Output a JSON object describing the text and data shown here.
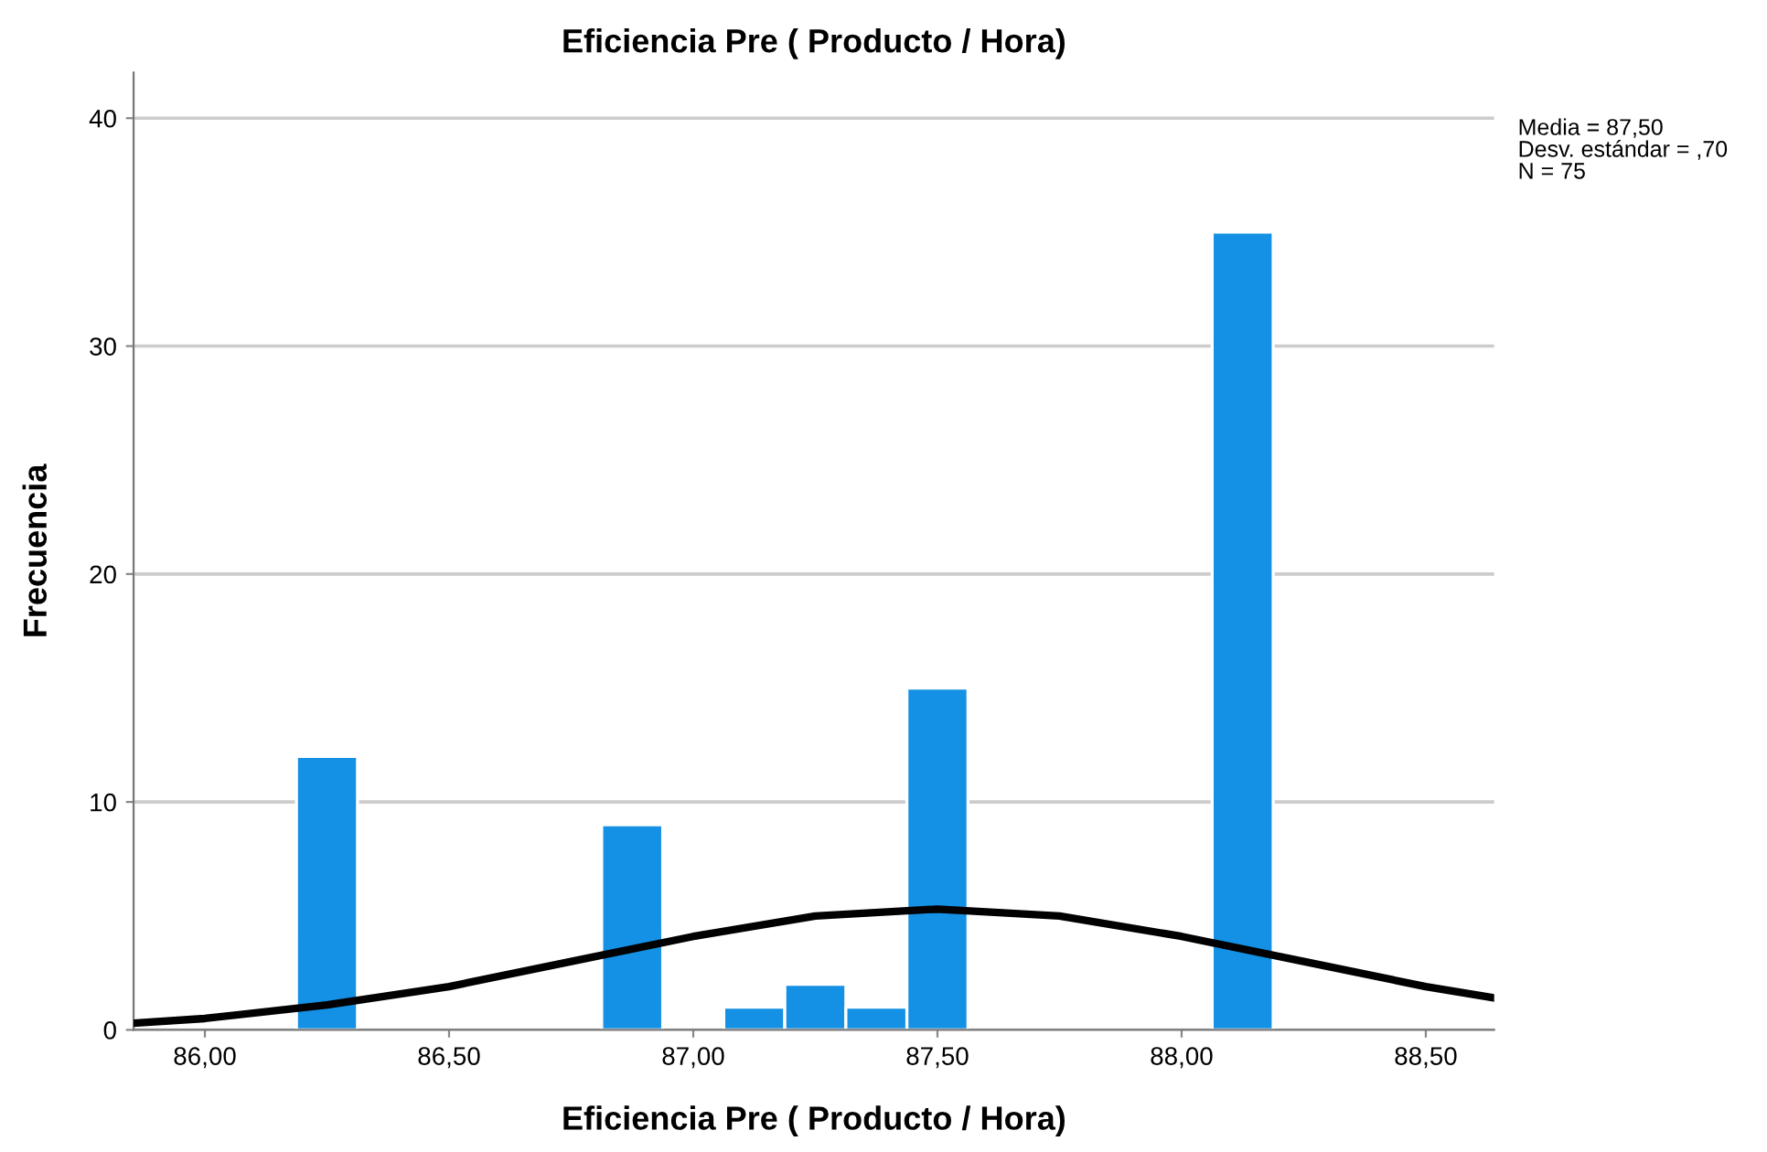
{
  "chart_data": {
    "type": "histogram",
    "title": "Eficiencia Pre ( Producto / Hora)",
    "xlabel": "Eficiencia Pre ( Producto / Hora)",
    "ylabel": "Frecuencia",
    "bins": [
      86.1875,
      86.3125,
      86.4375,
      86.5625,
      86.6875,
      86.8125,
      86.9375,
      87.0625,
      87.1875,
      87.3125,
      87.4375,
      87.5625,
      87.6875,
      87.8125,
      87.9375,
      88.0625,
      88.1875
    ],
    "values": [
      12,
      0,
      0,
      0,
      0,
      9,
      0,
      1,
      2,
      1,
      15,
      0,
      0,
      0,
      0,
      35
    ],
    "color": "#1490e4",
    "series": [
      {
        "type": "line",
        "color": "#000000",
        "x": [
          85.86,
          86.0,
          86.25,
          86.5,
          86.75,
          87.0,
          87.25,
          87.5,
          87.75,
          88.0,
          88.25,
          88.5,
          88.64
        ],
        "values": [
          0.3,
          0.5,
          1.1,
          1.9,
          3.0,
          4.1,
          5.0,
          5.3,
          5.0,
          4.1,
          3.0,
          1.9,
          1.4
        ]
      }
    ],
    "xlim": [
      85.854,
      88.64
    ],
    "ylim": [
      0,
      42
    ],
    "xticks": [
      {
        "value": 86,
        "label": "86,00"
      },
      {
        "value": 86.5,
        "label": "86,50"
      },
      {
        "value": 87,
        "label": "87,00"
      },
      {
        "value": 87.5,
        "label": "87,50"
      },
      {
        "value": 88,
        "label": "88,00"
      },
      {
        "value": 88.5,
        "label": "88,50"
      }
    ],
    "yticks": [
      0,
      10,
      20,
      30,
      40
    ],
    "grid": "y",
    "annotations": [
      "Media = 87,50",
      "Desv. estándar = ,70",
      "N = 75"
    ]
  }
}
